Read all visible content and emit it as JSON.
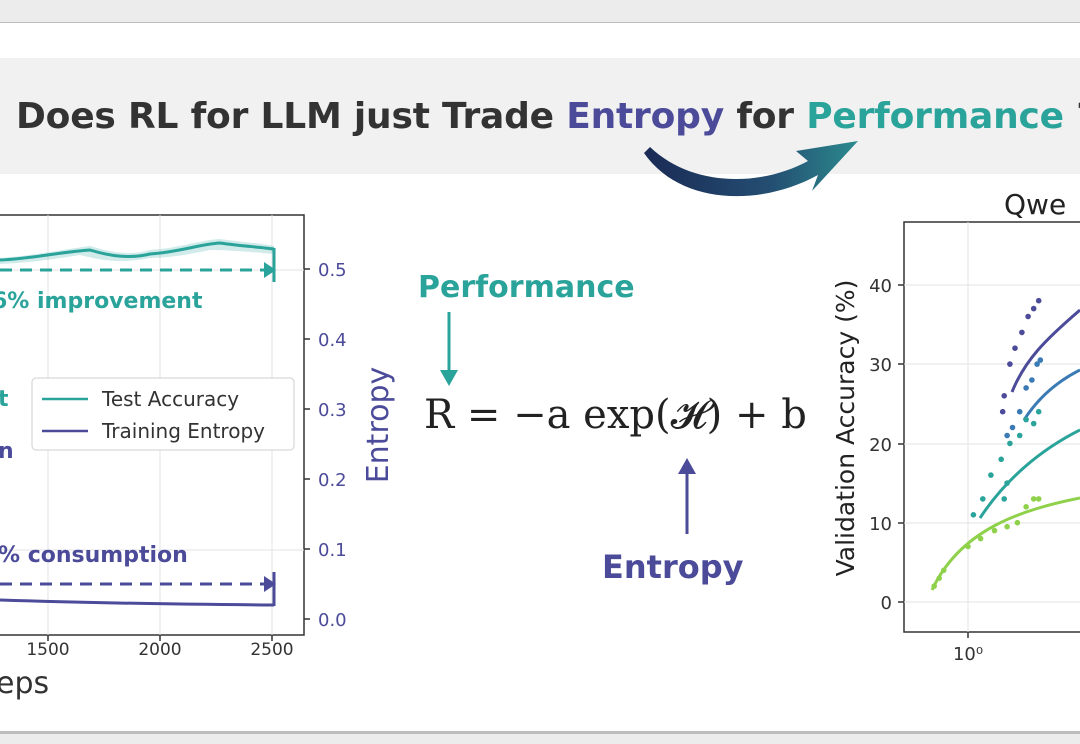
{
  "headline": {
    "prefix": "Does RL for LLM just Trade ",
    "entropy_word": "Entropy",
    "middle": " for ",
    "performance_word": "Performance",
    "suffix": " ?"
  },
  "formula": {
    "text": "R = −a exp(𝓗) + b",
    "performance_label": "Performance",
    "entropy_label": "Entropy"
  },
  "left_chart": {
    "y2_label": "Entropy",
    "x_label_fragment": "eps",
    "x_ticks": [
      "1500",
      "2000",
      "2500"
    ],
    "y2_ticks": [
      "0.5",
      "0.4",
      "0.3",
      "0.2",
      "0.1",
      "0.0"
    ],
    "annotation_top": "6% improvement",
    "annotation_bottom": "% consumption",
    "legend_fragments": [
      "t",
      "n"
    ],
    "legend": [
      "Test Accuracy",
      "Training Entropy"
    ],
    "colors": {
      "accuracy": "#2aa39a",
      "entropy": "#4b4b9a"
    }
  },
  "right_chart": {
    "title_fragment": "Qwe",
    "y_label": "Validation Accuracy (%)",
    "y_ticks": [
      "40",
      "30",
      "20",
      "10",
      "0"
    ],
    "x_tick": "10⁰",
    "colors": [
      "#4b4b9a",
      "#3a7ab5",
      "#2aa39a",
      "#8fd14a"
    ]
  },
  "chart_data": [
    {
      "type": "line",
      "title": "",
      "xlabel": "",
      "ylabel": "Entropy",
      "xlim": [
        1000,
        2600
      ],
      "ylim": [
        0.0,
        0.55
      ],
      "x_ticks": [
        1500,
        2000,
        2500
      ],
      "y2_ticks": [
        0.0,
        0.1,
        0.2,
        0.3,
        0.4,
        0.5
      ],
      "series": [
        {
          "name": "Test Accuracy",
          "x": [
            1000,
            1200,
            1400,
            1600,
            1800,
            2000,
            2200,
            2400,
            2500
          ],
          "values": [
            0.51,
            0.51,
            0.52,
            0.525,
            0.515,
            0.52,
            0.53,
            0.52,
            0.52
          ]
        },
        {
          "name": "Training Entropy",
          "x": [
            1000,
            1200,
            1400,
            1600,
            1800,
            2000,
            2200,
            2400,
            2500
          ],
          "values": [
            0.03,
            0.028,
            0.026,
            0.025,
            0.024,
            0.024,
            0.023,
            0.023,
            0.023
          ]
        }
      ],
      "legend_position": "center-right",
      "grid": true
    },
    {
      "type": "scatter",
      "title": "",
      "xlabel": "",
      "ylabel": "Validation Accuracy (%)",
      "xscale": "log",
      "ylim": [
        -3,
        45
      ],
      "y_ticks": [
        0,
        10,
        20,
        30,
        40
      ],
      "series": [
        {
          "points": [
            [
              1.9,
              26
            ],
            [
              2.1,
              30
            ],
            [
              2.3,
              32
            ],
            [
              2.6,
              34
            ],
            [
              2.9,
              36
            ],
            [
              3.2,
              37
            ],
            [
              3.5,
              38
            ],
            [
              1.85,
              24
            ]
          ]
        },
        {
          "points": [
            [
              2.2,
              22
            ],
            [
              2.5,
              24
            ],
            [
              2.8,
              27
            ],
            [
              3.1,
              28
            ],
            [
              3.4,
              30
            ],
            [
              3.6,
              30.5
            ],
            [
              2.0,
              21
            ]
          ]
        },
        {
          "points": [
            [
              1.1,
              11
            ],
            [
              1.3,
              13
            ],
            [
              1.5,
              16
            ],
            [
              1.8,
              18
            ],
            [
              2.1,
              20
            ],
            [
              2.5,
              21
            ],
            [
              2.8,
              23
            ],
            [
              3.2,
              22.5
            ],
            [
              3.5,
              24
            ],
            [
              1.9,
              13
            ],
            [
              2.0,
              15
            ]
          ]
        },
        {
          "points": [
            [
              0.55,
              2
            ],
            [
              0.6,
              3
            ],
            [
              0.65,
              4
            ],
            [
              1.0,
              7
            ],
            [
              1.25,
              8
            ],
            [
              1.6,
              9
            ],
            [
              2.0,
              9.5
            ],
            [
              2.4,
              10
            ],
            [
              2.8,
              12
            ],
            [
              3.2,
              13
            ],
            [
              3.5,
              13
            ]
          ]
        }
      ],
      "grid": true
    }
  ]
}
